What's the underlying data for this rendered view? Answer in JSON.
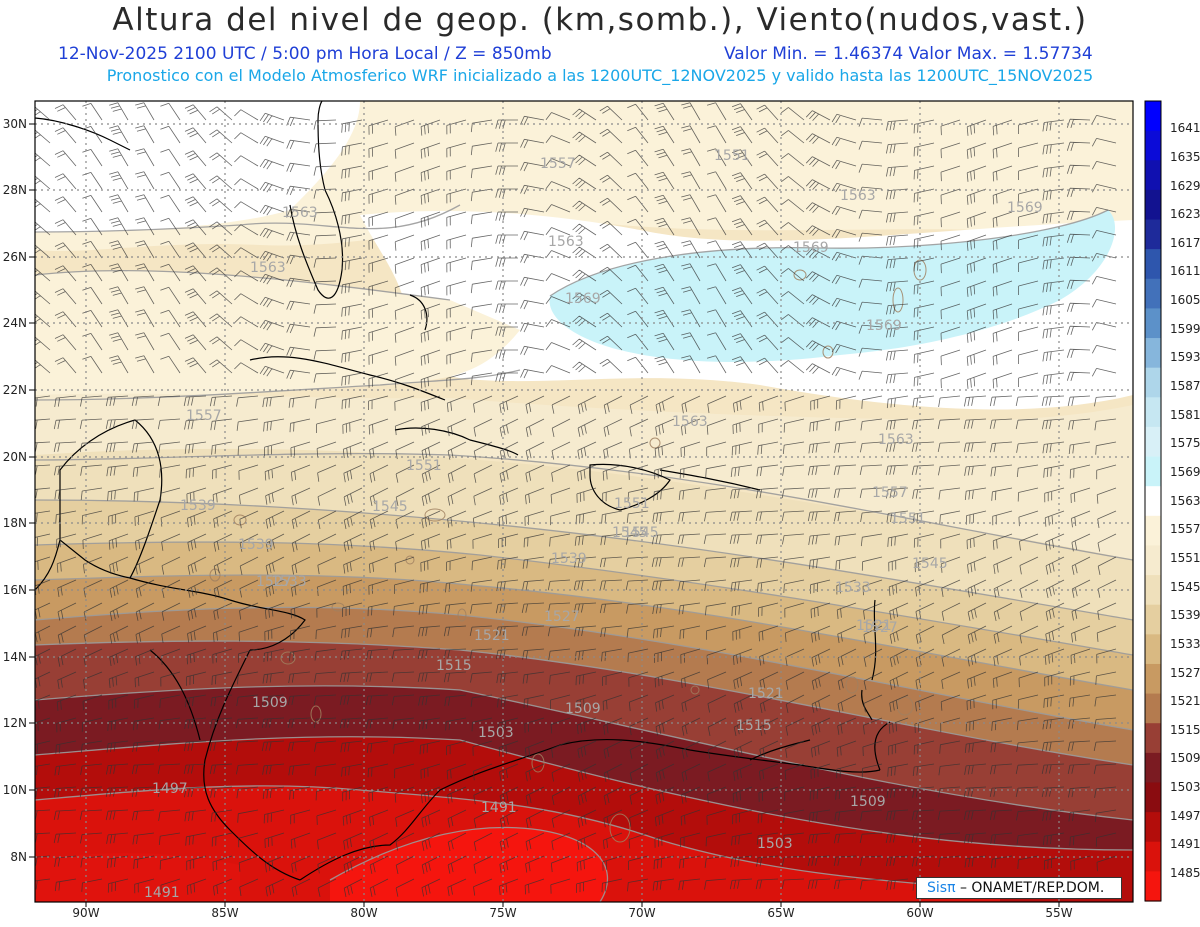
{
  "title": "Altura del nivel de geop. (km,somb.), Viento(nudos,vast.)",
  "subtitle": {
    "datetime": "12-Nov-2025  2100 UTC / 5:00 pm Hora Local / Z = 850mb",
    "minmax": "Valor Min. = 1.46374  Valor Max. = 1.57734"
  },
  "forecast_note": "Pronostico con el Modelo Atmosferico WRF inicializado a las 1200UTC_12NOV2025 y valido hasta las  1200UTC_15NOV2025",
  "lat_labels": [
    "30N",
    "28N",
    "26N",
    "24N",
    "22N",
    "20N",
    "18N",
    "16N",
    "14N",
    "12N",
    "10N",
    "8N"
  ],
  "lon_labels": [
    "90W",
    "85W",
    "80W",
    "75W",
    "70W",
    "65W",
    "60W",
    "55W"
  ],
  "colorbar": {
    "labels": [
      "1641",
      "1635",
      "1629",
      "1623",
      "1617",
      "1611",
      "1605",
      "1599",
      "1593",
      "1587",
      "1581",
      "1575",
      "1569",
      "1563",
      "1557",
      "1551",
      "1545",
      "1539",
      "1533",
      "1527",
      "1521",
      "1515",
      "1509",
      "1503",
      "1497",
      "1491",
      "1485"
    ],
    "colors": [
      "#0000ff",
      "#0b0bd8",
      "#1010b0",
      "#121290",
      "#1e2a9a",
      "#2e56ad",
      "#4271ba",
      "#5c91c9",
      "#86b6dc",
      "#aed6ea",
      "#c6e7f2",
      "#d8f0f7",
      "#c9f3f9",
      "#ffffff",
      "#fbf2d9",
      "#f6ebcf",
      "#efe0bb",
      "#e5cfa0",
      "#d9b982",
      "#c89a62",
      "#b47b4f",
      "#983f35",
      "#7b1b22",
      "#8a0c10",
      "#b30d0b",
      "#da120c",
      "#f5150e"
    ]
  },
  "contour_labels": [
    "1557",
    "1551",
    "1563",
    "1563",
    "1563",
    "1563",
    "1569",
    "1569",
    "1569",
    "1569",
    "1563",
    "1563",
    "1557",
    "1557",
    "1551",
    "1551",
    "1545",
    "1545",
    "1539",
    "1539",
    "1533",
    "1533",
    "1527",
    "1527",
    "1521",
    "1521",
    "1515",
    "1515",
    "1509",
    "1509",
    "1509",
    "1503",
    "1503",
    "1497",
    "1491",
    "1491",
    "1545",
    "1551",
    "1545",
    "1539",
    "1527",
    "1521"
  ],
  "credit": {
    "sis": "Sisπ",
    "org": "– ONAMET/REP.DOM."
  }
}
